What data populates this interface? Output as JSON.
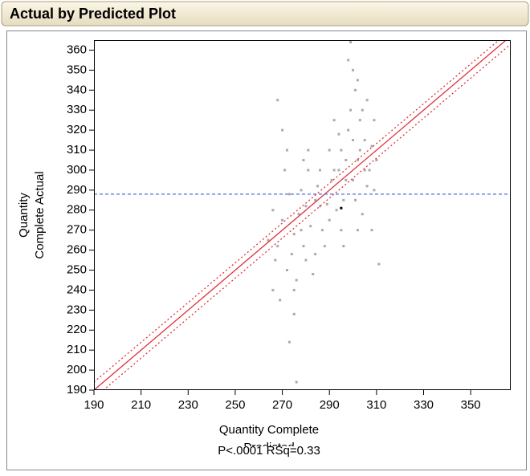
{
  "header": {
    "title": "Actual by Predicted Plot"
  },
  "chart_data": {
    "type": "scatter",
    "y_label": [
      "Quantity",
      "Complete Actual"
    ],
    "x_label": [
      "Quantity Complete",
      "Predicted"
    ],
    "stats": "P<.0001 RSq=0.33",
    "xlim": [
      190,
      367
    ],
    "ylim": [
      190,
      365
    ],
    "xticks": [
      190,
      210,
      230,
      250,
      270,
      290,
      310,
      330,
      350
    ],
    "yticks": [
      190,
      200,
      210,
      220,
      230,
      240,
      250,
      260,
      270,
      280,
      290,
      300,
      310,
      320,
      330,
      340,
      350,
      360
    ],
    "color": "#aaaaaa",
    "x": [
      268,
      270,
      272,
      266,
      275,
      278,
      280,
      282,
      284,
      276,
      271,
      269,
      273,
      277,
      279,
      281,
      283,
      285,
      287,
      289,
      267,
      274,
      286,
      288,
      290,
      270,
      268,
      272,
      275,
      279,
      264,
      266,
      275,
      273,
      276,
      281,
      284,
      286,
      278,
      280,
      292,
      295,
      298,
      300,
      302,
      305,
      307,
      309,
      296,
      299,
      301,
      303,
      306,
      308,
      294,
      297,
      293,
      304,
      300,
      302,
      298,
      299,
      306,
      309,
      291,
      295,
      303,
      301,
      305,
      297,
      310,
      304,
      296,
      294,
      308,
      311,
      300,
      292,
      290,
      302
    ],
    "y": [
      262,
      275,
      250,
      280,
      268,
      290,
      255,
      272,
      285,
      245,
      300,
      235,
      288,
      278,
      262,
      300,
      248,
      292,
      270,
      283,
      255,
      258,
      300,
      262,
      275,
      320,
      335,
      310,
      240,
      305,
      265,
      240,
      228,
      214,
      194,
      310,
      258,
      282,
      270,
      282,
      300,
      310,
      320,
      295,
      305,
      315,
      300,
      290,
      285,
      330,
      340,
      325,
      292,
      312,
      318,
      305,
      280,
      278,
      350,
      345,
      355,
      364,
      335,
      325,
      295,
      270,
      310,
      285,
      300,
      295,
      305,
      330,
      262,
      300,
      270,
      253,
      315,
      325,
      310,
      270
    ],
    "mean_point": {
      "x": 295,
      "y": 281,
      "color": "#000000"
    },
    "fit_line": {
      "x": [
        190,
        367
      ],
      "y": [
        190,
        367
      ],
      "color": "#e0303c"
    },
    "confidence_upper": {
      "x": [
        190,
        367
      ],
      "y": [
        194,
        370
      ],
      "color": "#e0303c"
    },
    "confidence_lower": {
      "x": [
        190,
        367
      ],
      "y": [
        186,
        363
      ],
      "color": "#e0303c"
    },
    "mean_line": {
      "y": 288,
      "color": "#4a6fd8"
    }
  }
}
